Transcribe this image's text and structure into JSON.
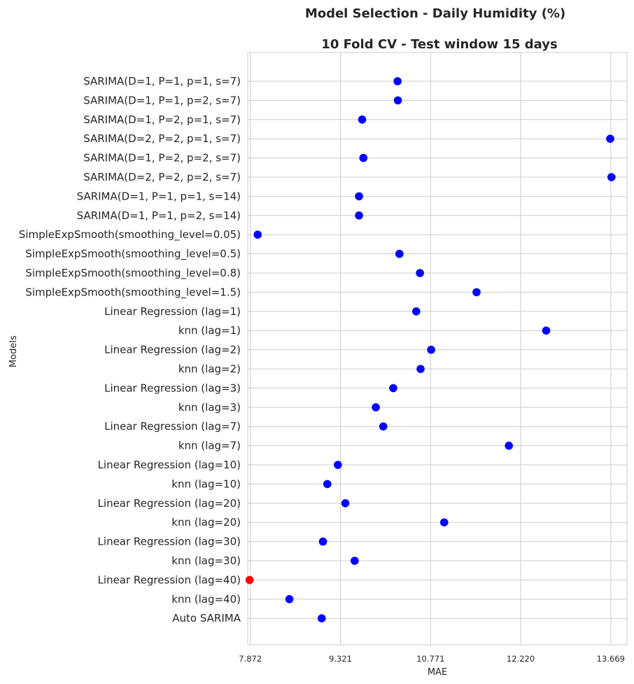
{
  "chart_data": {
    "type": "scatter",
    "title": "Model Selection - Daily Humidity (%)",
    "subtitle": "10 Fold CV - Test window 15 days",
    "xlabel": "MAE",
    "ylabel": "Models",
    "xticks": [
      "7.872",
      "9.321",
      "10.771",
      "12.220",
      "13.669"
    ],
    "xtick_values": [
      7.872,
      9.321,
      10.771,
      12.22,
      13.669
    ],
    "xlim": [
      7.83,
      13.93
    ],
    "grid": true,
    "colors": {
      "default": "#0000ff",
      "best": "#ff0000",
      "grid": "#cccccc"
    },
    "points": [
      {
        "model": "SARIMA(D=1, P=1, p=1, s=7)",
        "mae": 10.24,
        "best": false
      },
      {
        "model": "SARIMA(D=1, P=1, p=2, s=7)",
        "mae": 10.245,
        "best": false
      },
      {
        "model": "SARIMA(D=1, P=2, p=1, s=7)",
        "mae": 9.67,
        "best": false
      },
      {
        "model": "SARIMA(D=2, P=2, p=1, s=7)",
        "mae": 13.66,
        "best": false
      },
      {
        "model": "SARIMA(D=1, P=2, p=2, s=7)",
        "mae": 9.69,
        "best": false
      },
      {
        "model": "SARIMA(D=2, P=2, p=2, s=7)",
        "mae": 13.68,
        "best": false
      },
      {
        "model": "SARIMA(D=1, P=1, p=1, s=14)",
        "mae": 9.62,
        "best": false
      },
      {
        "model": "SARIMA(D=1, P=1, p=2, s=14)",
        "mae": 9.62,
        "best": false
      },
      {
        "model": "SimpleExpSmooth(smoothing_level=0.05)",
        "mae": 7.99,
        "best": false
      },
      {
        "model": "SimpleExpSmooth(smoothing_level=0.5)",
        "mae": 10.27,
        "best": false
      },
      {
        "model": "SimpleExpSmooth(smoothing_level=0.8)",
        "mae": 10.6,
        "best": false
      },
      {
        "model": "SimpleExpSmooth(smoothing_level=1.5)",
        "mae": 11.51,
        "best": false
      },
      {
        "model": "Linear Regression (lag=1)",
        "mae": 10.54,
        "best": false
      },
      {
        "model": "knn (lag=1)",
        "mae": 12.63,
        "best": false
      },
      {
        "model": "Linear Regression (lag=2)",
        "mae": 10.78,
        "best": false
      },
      {
        "model": "knn (lag=2)",
        "mae": 10.61,
        "best": false
      },
      {
        "model": "Linear Regression (lag=3)",
        "mae": 10.17,
        "best": false
      },
      {
        "model": "knn (lag=3)",
        "mae": 9.89,
        "best": false
      },
      {
        "model": "Linear Regression (lag=7)",
        "mae": 10.01,
        "best": false
      },
      {
        "model": "knn (lag=7)",
        "mae": 12.03,
        "best": false
      },
      {
        "model": "Linear Regression (lag=10)",
        "mae": 9.28,
        "best": false
      },
      {
        "model": "knn (lag=10)",
        "mae": 9.11,
        "best": false
      },
      {
        "model": "Linear Regression (lag=20)",
        "mae": 9.4,
        "best": false
      },
      {
        "model": "knn (lag=20)",
        "mae": 10.99,
        "best": false
      },
      {
        "model": "Linear Regression (lag=30)",
        "mae": 9.04,
        "best": false
      },
      {
        "model": "knn (lag=30)",
        "mae": 9.55,
        "best": false
      },
      {
        "model": "Linear Regression (lag=40)",
        "mae": 7.86,
        "best": true
      },
      {
        "model": "knn (lag=40)",
        "mae": 8.5,
        "best": false
      },
      {
        "model": "Auto SARIMA",
        "mae": 9.02,
        "best": false
      }
    ]
  }
}
